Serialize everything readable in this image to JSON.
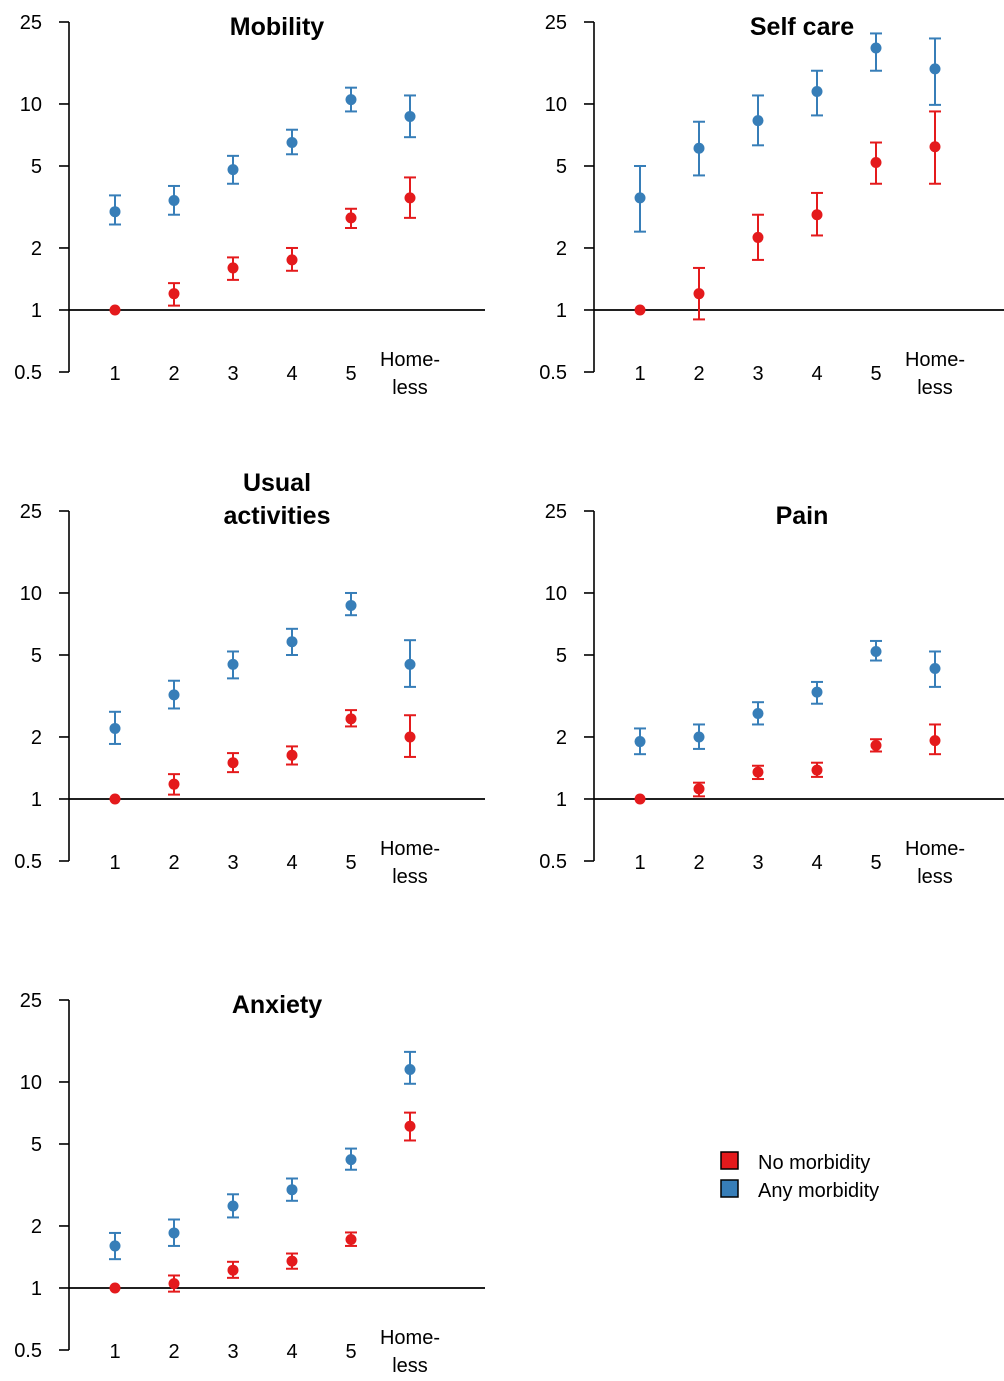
{
  "chart_data": [
    {
      "type": "scatter",
      "title_lines": [
        "Mobility"
      ],
      "scale": "log",
      "ylim": [
        0.5,
        25
      ],
      "yticks": [
        "0.5",
        "1",
        "2",
        "5",
        "10",
        "25"
      ],
      "reference_line": 1,
      "categories": [
        [
          "1"
        ],
        [
          "2"
        ],
        [
          "3"
        ],
        [
          "4"
        ],
        [
          "5"
        ],
        [
          "Home-",
          "less"
        ]
      ],
      "series": [
        {
          "name": "No morbidity",
          "color": "#e41a1c",
          "values": [
            1.0,
            1.2,
            1.6,
            1.75,
            2.8,
            3.5
          ],
          "lower": [
            null,
            1.05,
            1.4,
            1.55,
            2.5,
            2.8
          ],
          "upper": [
            null,
            1.35,
            1.8,
            2.0,
            3.1,
            4.4
          ]
        },
        {
          "name": "Any morbidity",
          "color": "#377eb8",
          "values": [
            3.0,
            3.4,
            4.8,
            6.5,
            10.5,
            8.7
          ],
          "lower": [
            2.6,
            2.9,
            4.1,
            5.7,
            9.2,
            6.9
          ],
          "upper": [
            3.6,
            4.0,
            5.6,
            7.5,
            12.0,
            11.0
          ]
        }
      ]
    },
    {
      "type": "scatter",
      "title_lines": [
        "Self care"
      ],
      "scale": "log",
      "ylim": [
        0.5,
        25
      ],
      "yticks": [
        "0.5",
        "1",
        "2",
        "5",
        "10",
        "25"
      ],
      "reference_line": 1,
      "categories": [
        [
          "1"
        ],
        [
          "2"
        ],
        [
          "3"
        ],
        [
          "4"
        ],
        [
          "5"
        ],
        [
          "Home-",
          "less"
        ]
      ],
      "series": [
        {
          "name": "No morbidity",
          "color": "#e41a1c",
          "values": [
            1.0,
            1.2,
            2.25,
            2.9,
            5.2,
            6.2
          ],
          "lower": [
            null,
            0.9,
            1.75,
            2.3,
            4.1,
            4.1
          ],
          "upper": [
            null,
            1.6,
            2.9,
            3.7,
            6.5,
            9.2
          ]
        },
        {
          "name": "Any morbidity",
          "color": "#377eb8",
          "values": [
            3.5,
            6.1,
            8.3,
            11.5,
            18.7,
            14.8
          ],
          "lower": [
            2.4,
            4.5,
            6.3,
            8.8,
            14.5,
            9.9
          ],
          "upper": [
            5.0,
            8.2,
            11.0,
            14.5,
            22.0,
            20.8
          ]
        }
      ]
    },
    {
      "type": "scatter",
      "title_lines": [
        "Usual",
        "activities"
      ],
      "scale": "log",
      "ylim": [
        0.5,
        25
      ],
      "yticks": [
        "0.5",
        "1",
        "2",
        "5",
        "10",
        "25"
      ],
      "reference_line": 1,
      "categories": [
        [
          "1"
        ],
        [
          "2"
        ],
        [
          "3"
        ],
        [
          "4"
        ],
        [
          "5"
        ],
        [
          "Home-",
          "less"
        ]
      ],
      "series": [
        {
          "name": "No morbidity",
          "color": "#e41a1c",
          "values": [
            1.0,
            1.18,
            1.5,
            1.63,
            2.45,
            2.0
          ],
          "lower": [
            null,
            1.05,
            1.35,
            1.47,
            2.25,
            1.6
          ],
          "upper": [
            null,
            1.32,
            1.67,
            1.8,
            2.7,
            2.55
          ]
        },
        {
          "name": "Any morbidity",
          "color": "#377eb8",
          "values": [
            2.2,
            3.2,
            4.5,
            5.8,
            8.7,
            4.5
          ],
          "lower": [
            1.85,
            2.75,
            3.85,
            5.0,
            7.8,
            3.5
          ],
          "upper": [
            2.65,
            3.75,
            5.2,
            6.7,
            10.0,
            5.9
          ]
        }
      ]
    },
    {
      "type": "scatter",
      "title_lines": [
        "Pain"
      ],
      "scale": "log",
      "ylim": [
        0.5,
        25
      ],
      "yticks": [
        "0.5",
        "1",
        "2",
        "5",
        "10",
        "25"
      ],
      "reference_line": 1,
      "categories": [
        [
          "1"
        ],
        [
          "2"
        ],
        [
          "3"
        ],
        [
          "4"
        ],
        [
          "5"
        ],
        [
          "Home-",
          "less"
        ]
      ],
      "series": [
        {
          "name": "No morbidity",
          "color": "#e41a1c",
          "values": [
            1.0,
            1.12,
            1.35,
            1.38,
            1.82,
            1.92
          ],
          "lower": [
            null,
            1.03,
            1.25,
            1.28,
            1.7,
            1.65
          ],
          "upper": [
            null,
            1.2,
            1.45,
            1.5,
            1.95,
            2.3
          ]
        },
        {
          "name": "Any morbidity",
          "color": "#377eb8",
          "values": [
            1.9,
            2.0,
            2.6,
            3.3,
            5.2,
            4.3
          ],
          "lower": [
            1.65,
            1.75,
            2.3,
            2.9,
            4.7,
            3.5
          ],
          "upper": [
            2.2,
            2.3,
            2.95,
            3.7,
            5.85,
            5.2
          ]
        }
      ]
    },
    {
      "type": "scatter",
      "title_lines": [
        "Anxiety"
      ],
      "scale": "log",
      "ylim": [
        0.5,
        25
      ],
      "yticks": [
        "0.5",
        "1",
        "2",
        "5",
        "10",
        "25"
      ],
      "reference_line": 1,
      "categories": [
        [
          "1"
        ],
        [
          "2"
        ],
        [
          "3"
        ],
        [
          "4"
        ],
        [
          "5"
        ],
        [
          "Home-",
          "less"
        ]
      ],
      "series": [
        {
          "name": "No morbidity",
          "color": "#e41a1c",
          "values": [
            1.0,
            1.05,
            1.22,
            1.35,
            1.72,
            6.1
          ],
          "lower": [
            null,
            0.96,
            1.12,
            1.24,
            1.6,
            5.2
          ],
          "upper": [
            null,
            1.15,
            1.34,
            1.47,
            1.86,
            7.1
          ]
        },
        {
          "name": "Any morbidity",
          "color": "#377eb8",
          "values": [
            1.6,
            1.85,
            2.5,
            3.0,
            4.2,
            11.5
          ],
          "lower": [
            1.38,
            1.6,
            2.2,
            2.65,
            3.75,
            9.8
          ],
          "upper": [
            1.85,
            2.15,
            2.85,
            3.4,
            4.75,
            14.0
          ]
        }
      ]
    }
  ],
  "legend": {
    "placement": "bottom-right",
    "items": [
      {
        "label": "No morbidity",
        "color": "#e41a1c"
      },
      {
        "label": "Any morbidity",
        "color": "#377eb8"
      }
    ]
  }
}
